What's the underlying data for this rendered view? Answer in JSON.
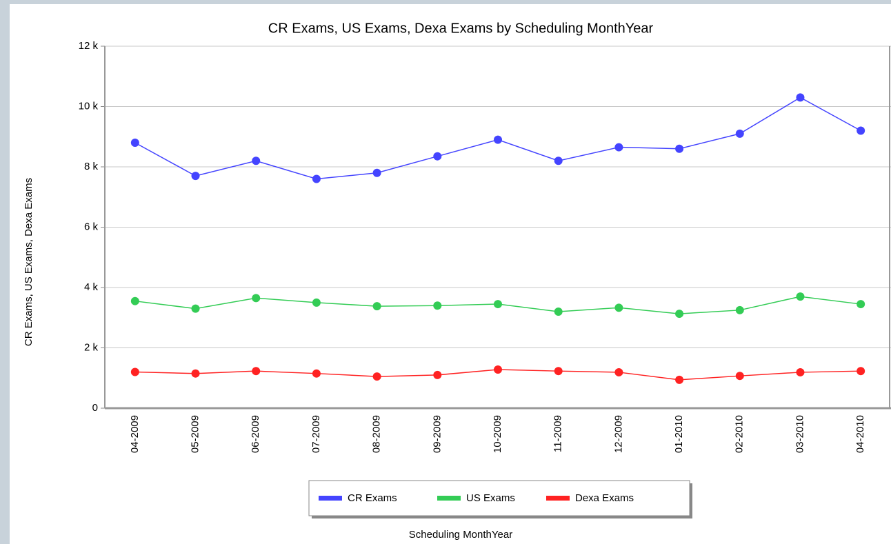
{
  "chart_data": {
    "type": "line",
    "title": "CR Exams, US Exams, Dexa Exams by Scheduling MonthYear",
    "x_label": "Scheduling MonthYear",
    "y_label": "CR Exams, US Exams, Dexa Exams",
    "categories": [
      "04-2009",
      "05-2009",
      "06-2009",
      "07-2009",
      "08-2009",
      "09-2009",
      "10-2009",
      "11-2009",
      "12-2009",
      "01-2010",
      "02-2010",
      "03-2010",
      "04-2010"
    ],
    "series": [
      {
        "name": "CR Exams",
        "color": "#4444ff",
        "values": [
          8800,
          7700,
          8200,
          7600,
          7800,
          8350,
          8900,
          8200,
          8650,
          8600,
          9100,
          10300,
          9200
        ]
      },
      {
        "name": "US Exams",
        "color": "#33cc55",
        "values": [
          3550,
          3300,
          3650,
          3500,
          3380,
          3400,
          3450,
          3200,
          3330,
          3130,
          3250,
          3700,
          3450
        ]
      },
      {
        "name": "Dexa Exams",
        "color": "#ff2222",
        "values": [
          1200,
          1150,
          1230,
          1150,
          1050,
          1100,
          1280,
          1230,
          1190,
          940,
          1070,
          1190,
          1230
        ]
      }
    ],
    "ylim": [
      0,
      12000
    ],
    "yticks": [
      {
        "value": 0,
        "label": "0"
      },
      {
        "value": 2000,
        "label": "2 k"
      },
      {
        "value": 4000,
        "label": "4 k"
      },
      {
        "value": 6000,
        "label": "6 k"
      },
      {
        "value": 8000,
        "label": "8 k"
      },
      {
        "value": 10000,
        "label": "10 k"
      },
      {
        "value": 12000,
        "label": "12 k"
      }
    ],
    "grid": true,
    "legend": "bottom"
  }
}
